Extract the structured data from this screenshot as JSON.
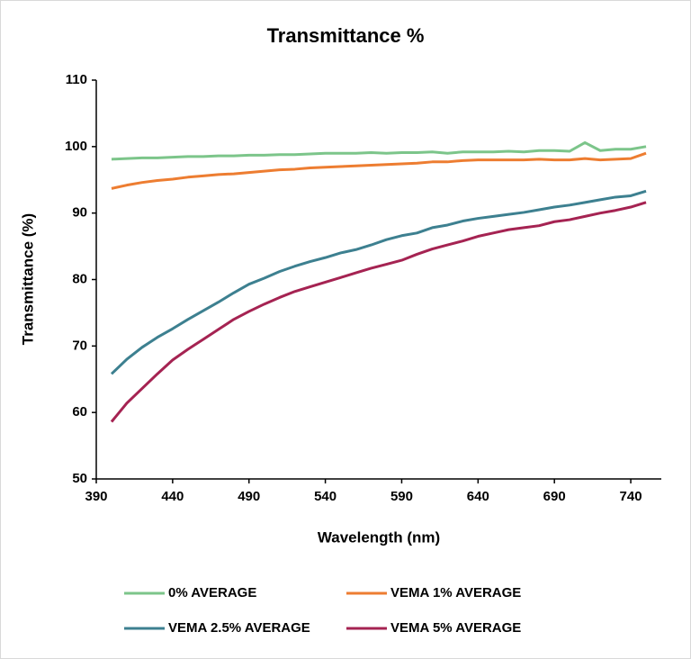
{
  "chart_data": {
    "type": "line",
    "title": "Transmittance %",
    "x_label": "Wavelength (nm)",
    "y_label": "Transmittance (%)",
    "x": [
      400,
      410,
      420,
      430,
      440,
      450,
      460,
      470,
      480,
      490,
      500,
      510,
      520,
      530,
      540,
      550,
      560,
      570,
      580,
      590,
      600,
      610,
      620,
      630,
      640,
      650,
      660,
      670,
      680,
      690,
      700,
      710,
      720,
      730,
      740,
      750
    ],
    "xlim": [
      390,
      760
    ],
    "xticks": [
      390,
      440,
      490,
      540,
      590,
      640,
      690,
      740
    ],
    "ylim": [
      50,
      110
    ],
    "yticks": [
      50,
      60,
      70,
      80,
      90,
      100,
      110
    ],
    "grid": false,
    "legend": "bottom",
    "series": [
      {
        "name": "0% AVERAGE",
        "color": "#7cc58a",
        "values": [
          98.1,
          98.2,
          98.3,
          98.3,
          98.4,
          98.5,
          98.5,
          98.6,
          98.6,
          98.7,
          98.7,
          98.8,
          98.8,
          98.9,
          99.0,
          99.0,
          99.0,
          99.1,
          99.0,
          99.1,
          99.1,
          99.2,
          99.0,
          99.2,
          99.2,
          99.2,
          99.3,
          99.2,
          99.4,
          99.4,
          99.3,
          100.6,
          99.4,
          99.6,
          99.6,
          100.0
        ]
      },
      {
        "name": "VEMA 1% AVERAGE",
        "color": "#ed7d31",
        "values": [
          93.7,
          94.2,
          94.6,
          94.9,
          95.1,
          95.4,
          95.6,
          95.8,
          95.9,
          96.1,
          96.3,
          96.5,
          96.6,
          96.8,
          96.9,
          97.0,
          97.1,
          97.2,
          97.3,
          97.4,
          97.5,
          97.7,
          97.7,
          97.9,
          98.0,
          98.0,
          98.0,
          98.0,
          98.1,
          98.0,
          98.0,
          98.2,
          98.0,
          98.1,
          98.2,
          99.0
        ]
      },
      {
        "name": "VEMA 2.5% AVERAGE",
        "color": "#3d8090",
        "values": [
          65.8,
          68.0,
          69.8,
          71.3,
          72.6,
          74.0,
          75.3,
          76.6,
          78.0,
          79.3,
          80.2,
          81.2,
          82.0,
          82.7,
          83.3,
          84.0,
          84.5,
          85.2,
          86.0,
          86.6,
          87.0,
          87.8,
          88.2,
          88.8,
          89.2,
          89.5,
          89.8,
          90.1,
          90.5,
          90.9,
          91.2,
          91.6,
          92.0,
          92.4,
          92.6,
          93.3
        ]
      },
      {
        "name": "VEMA 5% AVERAGE",
        "color": "#a52352",
        "values": [
          58.6,
          61.4,
          63.6,
          65.8,
          67.9,
          69.5,
          71.0,
          72.5,
          74.0,
          75.2,
          76.3,
          77.3,
          78.2,
          78.9,
          79.6,
          80.3,
          81.0,
          81.7,
          82.3,
          82.9,
          83.8,
          84.6,
          85.2,
          85.8,
          86.5,
          87.0,
          87.5,
          87.8,
          88.1,
          88.7,
          89.0,
          89.5,
          90.0,
          90.4,
          90.9,
          91.6
        ]
      }
    ]
  }
}
